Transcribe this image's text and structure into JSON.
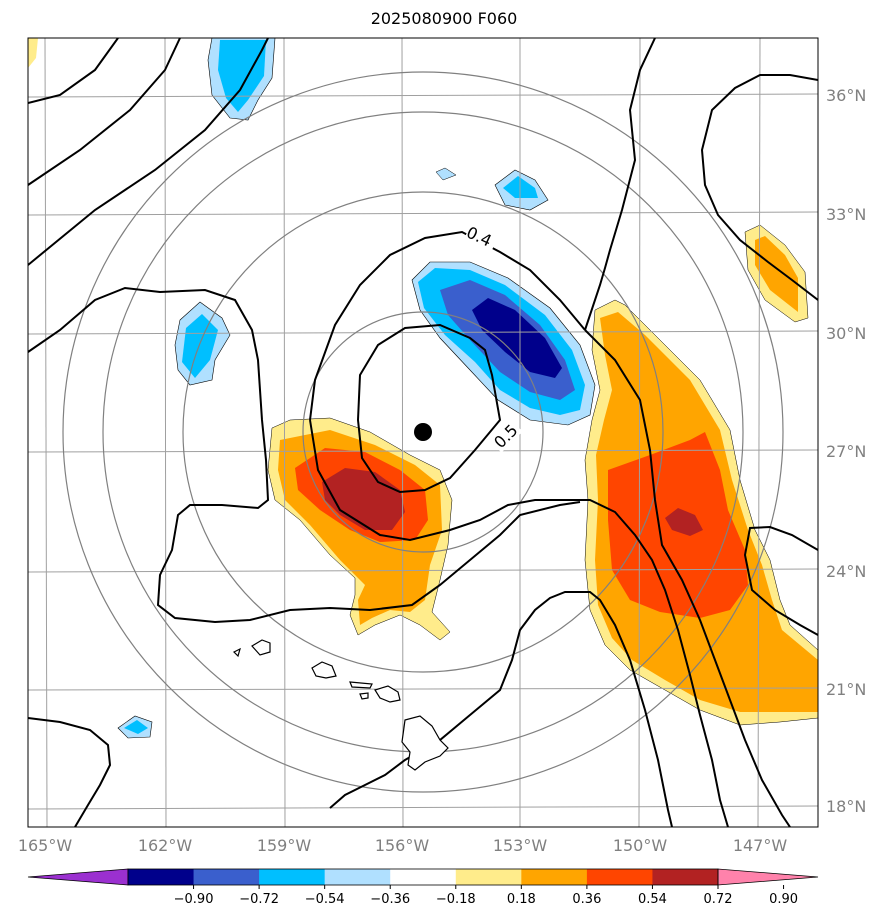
{
  "title": "2025080900 F060",
  "lat_labels": [
    "36°N",
    "33°N",
    "30°N",
    "27°N",
    "24°N",
    "21°N",
    "18°N"
  ],
  "lon_labels": [
    "165°W",
    "162°W",
    "159°W",
    "156°W",
    "153°W",
    "150°W",
    "147°W"
  ],
  "contour_labels": [
    "0.4",
    "0.5"
  ],
  "colorbar": {
    "ticks": [
      "−0.90",
      "−0.72",
      "−0.54",
      "−0.36",
      "−0.18",
      "0.18",
      "0.36",
      "0.54",
      "0.72",
      "0.90"
    ],
    "colors": [
      "#9b30d0",
      "#00008b",
      "#3a5fcd",
      "#00bfff",
      "#b0e0ff",
      "#ffffff",
      "#ffec8b",
      "#ffa500",
      "#ff4500",
      "#b22222",
      "#ff82ab"
    ]
  },
  "colors": {
    "neg_strong": "#00008b",
    "neg_mid": "#3a5fcd",
    "neg_light": "#00bfff",
    "neg_faint": "#b0e0ff",
    "pos_faint": "#ffec8b",
    "pos_light": "#ffa500",
    "pos_mid": "#ff4500",
    "pos_strong": "#b22222",
    "grid": "#a0a0a0",
    "ring": "#808080"
  },
  "center_marker": "storm-center"
}
